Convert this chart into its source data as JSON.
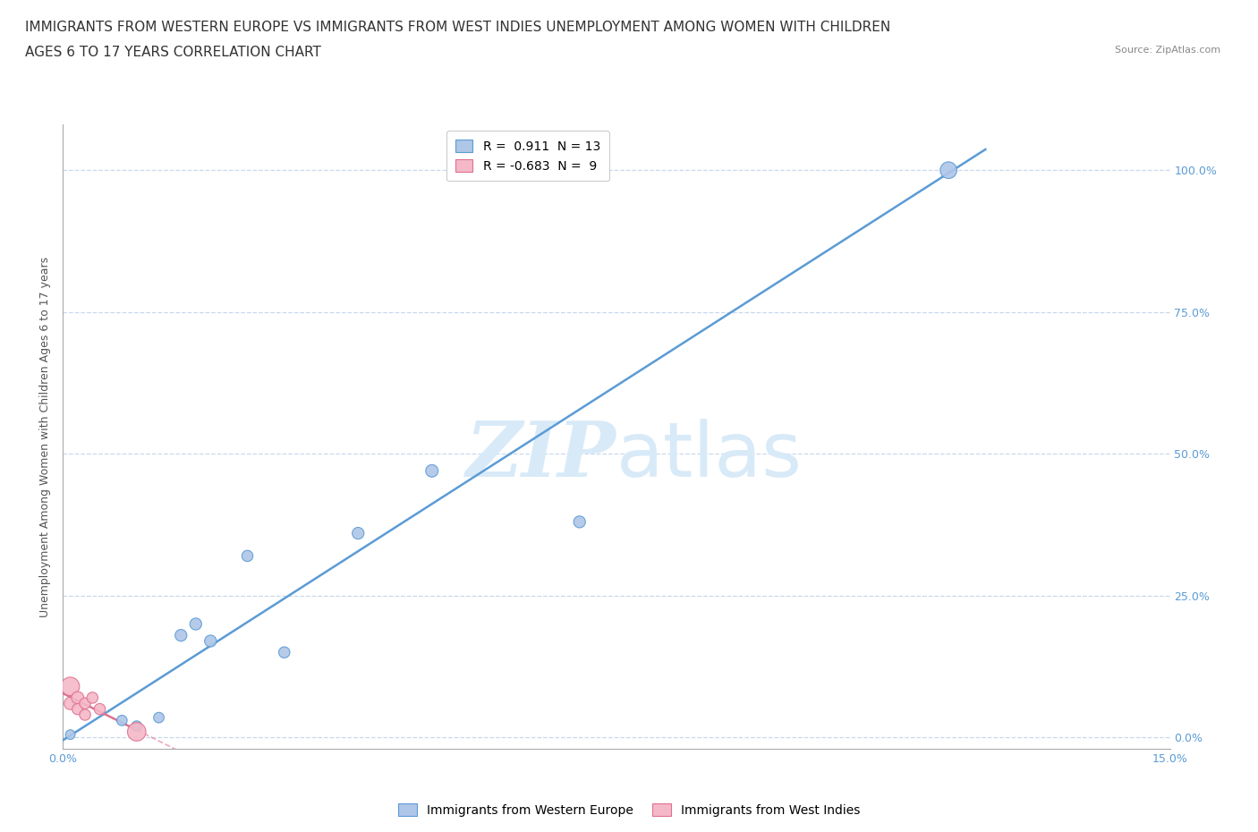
{
  "title_line1": "IMMIGRANTS FROM WESTERN EUROPE VS IMMIGRANTS FROM WEST INDIES UNEMPLOYMENT AMONG WOMEN WITH CHILDREN",
  "title_line2": "AGES 6 TO 17 YEARS CORRELATION CHART",
  "source": "Source: ZipAtlas.com",
  "ylabel": "Unemployment Among Women with Children Ages 6 to 17 years",
  "xlim": [
    0,
    0.15
  ],
  "ylim": [
    -0.02,
    1.08
  ],
  "yticks": [
    0.0,
    0.25,
    0.5,
    0.75,
    1.0
  ],
  "ytick_labels": [
    "0.0%",
    "25.0%",
    "50.0%",
    "75.0%",
    "100.0%"
  ],
  "xtick_labels_show": [
    "0.0%",
    "15.0%"
  ],
  "xtick_positions_show": [
    0.0,
    0.15
  ],
  "blue_color": "#aec6e8",
  "blue_line_color": "#5b9bd5",
  "pink_color": "#f4b8c8",
  "pink_line_color": "#e07090",
  "background_color": "#ffffff",
  "watermark_zip": "ZIP",
  "watermark_atlas": "atlas",
  "watermark_color": "#d8eaf8",
  "legend_R_blue": "0.911",
  "legend_N_blue": "13",
  "legend_R_pink": "-0.683",
  "legend_N_pink": "9",
  "blue_x": [
    0.001,
    0.008,
    0.01,
    0.013,
    0.016,
    0.018,
    0.02,
    0.025,
    0.03,
    0.04,
    0.05,
    0.07,
    0.12
  ],
  "blue_y": [
    0.005,
    0.03,
    0.02,
    0.035,
    0.18,
    0.2,
    0.17,
    0.32,
    0.15,
    0.36,
    0.47,
    0.38,
    1.0
  ],
  "blue_sizes": [
    60,
    70,
    70,
    70,
    90,
    90,
    90,
    80,
    80,
    90,
    100,
    90,
    180
  ],
  "pink_x": [
    0.001,
    0.001,
    0.002,
    0.002,
    0.003,
    0.003,
    0.004,
    0.005,
    0.01
  ],
  "pink_y": [
    0.09,
    0.06,
    0.07,
    0.05,
    0.06,
    0.04,
    0.07,
    0.05,
    0.01
  ],
  "pink_sizes": [
    220,
    100,
    100,
    80,
    80,
    80,
    80,
    80,
    220
  ],
  "grid_color": "#c8d8ee",
  "title_fontsize": 11,
  "axis_label_fontsize": 9,
  "tick_fontsize": 9,
  "tick_color": "#5b9bd5"
}
